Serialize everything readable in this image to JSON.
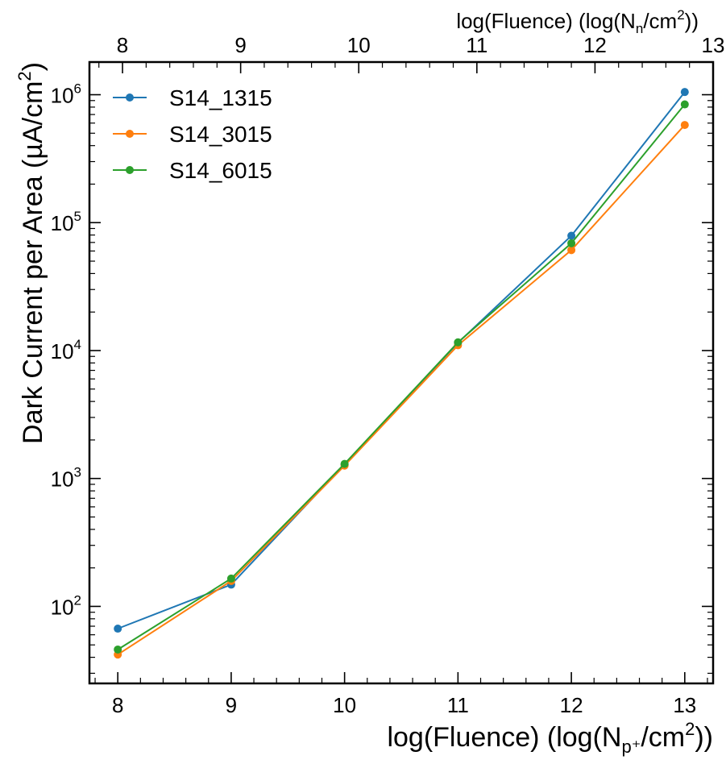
{
  "chart_data": {
    "type": "line",
    "x": [
      8,
      9,
      10,
      11,
      12,
      13
    ],
    "series": [
      {
        "name": "S14_1315",
        "color": "#1f77b4",
        "values": [
          67,
          148,
          1290,
          11500,
          79000,
          1050000
        ]
      },
      {
        "name": "S14_3015",
        "color": "#ff7f0e",
        "values": [
          42,
          158,
          1260,
          11000,
          61000,
          580000
        ]
      },
      {
        "name": "S14_6015",
        "color": "#2ca02c",
        "values": [
          46,
          165,
          1300,
          11600,
          69000,
          840000
        ]
      }
    ],
    "xlim": [
      7.75,
      13.25
    ],
    "ylim": [
      25,
      1800000
    ],
    "yscale": "log",
    "xticks": [
      {
        "value": 8,
        "label": "8"
      },
      {
        "value": 9,
        "label": "9"
      },
      {
        "value": 10,
        "label": "10"
      },
      {
        "value": 11,
        "label": "11"
      },
      {
        "value": 12,
        "label": "12"
      },
      {
        "value": 13,
        "label": "13"
      }
    ],
    "yticks": [
      {
        "value": 100,
        "base": "10",
        "exp": "2"
      },
      {
        "value": 1000,
        "base": "10",
        "exp": "3"
      },
      {
        "value": 10000,
        "base": "10",
        "exp": "4"
      },
      {
        "value": 100000,
        "base": "10",
        "exp": "5"
      },
      {
        "value": 1000000,
        "base": "10",
        "exp": "6"
      }
    ],
    "top_axis": {
      "xlim": [
        7.72,
        13.0
      ],
      "ticks": [
        {
          "value": 8,
          "label": "8"
        },
        {
          "value": 9,
          "label": "9"
        },
        {
          "value": 10,
          "label": "10"
        },
        {
          "value": 11,
          "label": "11"
        },
        {
          "value": 12,
          "label": "12"
        },
        {
          "value": 13,
          "label": "13"
        }
      ],
      "label": {
        "pre": "log(Fluence) (log(N",
        "sub": "n",
        "mid": "/cm",
        "sup": "2",
        "post": "))"
      }
    },
    "xlabel": {
      "pre": "log(Fluence) (log(N",
      "sub": "p⁺",
      "mid": "/cm",
      "sup": "2",
      "post": "))"
    },
    "ylabel": {
      "pre": "Dark Current per Area (µA/cm",
      "sup": "2",
      "post": ")"
    },
    "legend": {
      "position": "top-left"
    },
    "grid": false
  }
}
